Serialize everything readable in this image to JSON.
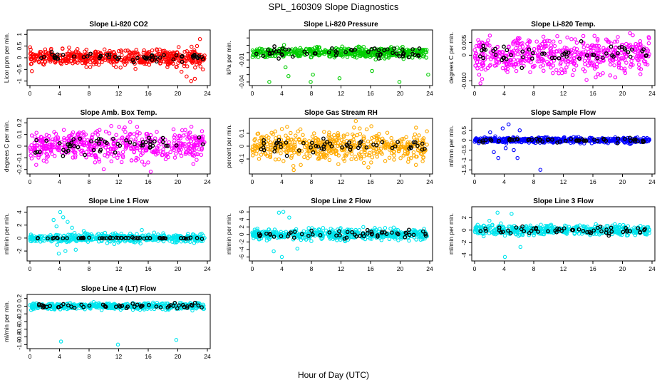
{
  "page": {
    "title": "SPL_160309  Slope Diagnostics",
    "xlabel": "Hour of Day (UTC)"
  },
  "chart_data": [
    {
      "type": "scatter",
      "title": "Slope Li-820 CO2",
      "ylabel": "Licor ppm per min.",
      "color": "#ff0000",
      "xlim": [
        0,
        24
      ],
      "ylim": [
        -1.1,
        1.1
      ],
      "xticks": [
        0,
        4,
        8,
        12,
        16,
        20,
        24
      ],
      "yticks": [
        -1,
        -0.5,
        0,
        0.5,
        1
      ],
      "ytick_labels": [
        "-1",
        "-0.5",
        "0",
        "0.5",
        "1"
      ],
      "dense": {
        "center": 0.0,
        "spread": 0.3
      },
      "mean_points": {
        "center": 0.02,
        "spread": 0.15
      },
      "outliers": [
        [
          20.5,
          -0.6
        ],
        [
          21.2,
          -0.8
        ],
        [
          21.8,
          -1.0
        ],
        [
          22.3,
          -0.9
        ],
        [
          23.0,
          0.8
        ],
        [
          22.6,
          0.5
        ],
        [
          19.8,
          -0.4
        ],
        [
          23.4,
          -0.5
        ]
      ]
    },
    {
      "type": "scatter",
      "title": "Slope Li-820 Pressure",
      "ylabel": "kPa per min.",
      "color": "#00cc00",
      "xlim": [
        0,
        24
      ],
      "ylim": [
        -0.042,
        0.028
      ],
      "xticks": [
        0,
        4,
        8,
        12,
        16,
        20,
        24
      ],
      "yticks": [
        -0.04,
        -0.03,
        -0.02,
        -0.01,
        0,
        0.01,
        0.02
      ],
      "ytick_labels": [
        "-0.04",
        "",
        "",
        "-0.01",
        "",
        "",
        ""
      ],
      "dense": {
        "center": 0.0,
        "spread": 0.006
      },
      "mean_points": {
        "center": 0.0,
        "spread": 0.008
      },
      "outliers": [
        [
          2.3,
          -0.04
        ],
        [
          4.5,
          -0.02
        ],
        [
          7.9,
          -0.04
        ],
        [
          11.8,
          -0.035
        ],
        [
          16.2,
          -0.025
        ],
        [
          19.9,
          -0.04
        ],
        [
          23.8,
          -0.03
        ],
        [
          8.2,
          -0.03
        ],
        [
          4.9,
          -0.032
        ]
      ]
    },
    {
      "type": "scatter",
      "title": "Slope Li-820 Temp.",
      "ylabel": "degrees C per min.",
      "color": "#ff00ff",
      "xlim": [
        0,
        24
      ],
      "ylim": [
        -0.011,
        0.009
      ],
      "xticks": [
        0,
        4,
        8,
        12,
        16,
        20,
        24
      ],
      "yticks": [
        -0.01,
        0,
        0.005
      ],
      "ytick_labels": [
        "-0.010",
        "0",
        "0.005"
      ],
      "dense": {
        "center": 0.0,
        "spread": 0.006
      },
      "mean_points": {
        "center": 0.0,
        "spread": 0.004
      },
      "outliers": []
    },
    {
      "type": "scatter",
      "title": "Slope Amb. Box Temp.",
      "ylabel": "degrees C per min.",
      "color": "#ff00ff",
      "xlim": [
        0,
        24
      ],
      "ylim": [
        -0.22,
        0.22
      ],
      "xticks": [
        0,
        4,
        8,
        12,
        16,
        20,
        24
      ],
      "yticks": [
        -0.2,
        -0.1,
        0,
        0.1,
        0.2
      ],
      "ytick_labels": [
        "-0.2",
        "-0.1",
        "0",
        "0.1",
        "0.2"
      ],
      "dense": {
        "center": 0.0,
        "spread": 0.12
      },
      "mean_points": {
        "center": 0.02,
        "spread": 0.08
      },
      "outliers": []
    },
    {
      "type": "scatter",
      "title": "Slope Gas Stream RH",
      "ylabel": "percent per min.",
      "color": "#ffaa00",
      "xlim": [
        0,
        24
      ],
      "ylim": [
        -0.2,
        0.2
      ],
      "xticks": [
        0,
        4,
        8,
        12,
        16,
        20,
        24
      ],
      "yticks": [
        -0.1,
        0,
        0.1
      ],
      "ytick_labels": [
        "-0.1",
        "0",
        "0.1"
      ],
      "dense": {
        "center": 0.0,
        "spread": 0.1
      },
      "mean_points": {
        "center": 0.0,
        "spread": 0.06
      },
      "outliers": []
    },
    {
      "type": "scatter",
      "title": "Slope Sample Flow",
      "ylabel": "ml/min per min.",
      "color": "#0000ff",
      "xlim": [
        0,
        24
      ],
      "ylim": [
        -1.6,
        1.0
      ],
      "xticks": [
        0,
        4,
        8,
        12,
        16,
        20,
        24
      ],
      "yticks": [
        -1.5,
        -1,
        -0.5,
        0,
        0.5
      ],
      "ytick_labels": [
        "-1.5",
        "-1",
        "-0.5",
        "0",
        "0.5"
      ],
      "dense": {
        "center": 0.0,
        "spread": 0.12
      },
      "mean_points": {
        "center": 0.0,
        "spread": 0.1
      },
      "outliers": [
        [
          2.1,
          0.4
        ],
        [
          2.6,
          -0.6
        ],
        [
          3.2,
          -0.9
        ],
        [
          3.8,
          0.6
        ],
        [
          4.2,
          -0.4
        ],
        [
          4.6,
          0.8
        ],
        [
          5.3,
          -0.5
        ],
        [
          6.1,
          0.5
        ],
        [
          8.9,
          -1.5
        ],
        [
          5.8,
          -0.9
        ],
        [
          2.8,
          0.2
        ]
      ]
    },
    {
      "type": "scatter",
      "title": "Slope Line 1 Flow",
      "ylabel": "ml/min per min.",
      "color": "#00e5ee",
      "xlim": [
        0,
        24
      ],
      "ylim": [
        -3.2,
        4.5
      ],
      "xticks": [
        0,
        4,
        8,
        12,
        16,
        20,
        24
      ],
      "yticks": [
        -2,
        0,
        2,
        4
      ],
      "ytick_labels": [
        "-2",
        "0",
        "2",
        "4"
      ],
      "dense": {
        "center": 0.0,
        "spread": 0.6
      },
      "mean_points": {
        "center": 0.0,
        "spread": 0.1
      },
      "outliers": [
        [
          3.2,
          2.8
        ],
        [
          3.6,
          1.8
        ],
        [
          4.1,
          4.0
        ],
        [
          4.5,
          3.2
        ],
        [
          5.1,
          2.5
        ],
        [
          5.7,
          1.6
        ],
        [
          4.8,
          -2.0
        ],
        [
          3.9,
          -2.4
        ],
        [
          6.2,
          -1.8
        ]
      ]
    },
    {
      "type": "scatter",
      "title": "Slope Line 2 Flow",
      "ylabel": "ml/min per min.",
      "color": "#00e5ee",
      "xlim": [
        0,
        24
      ],
      "ylim": [
        -6.5,
        6.8
      ],
      "xticks": [
        0,
        4,
        8,
        12,
        16,
        20,
        24
      ],
      "yticks": [
        -6,
        -4,
        -2,
        0,
        2,
        4,
        6
      ],
      "ytick_labels": [
        "-6",
        "-4",
        "-2",
        "0",
        "2",
        "4",
        "6"
      ],
      "dense": {
        "center": 0.0,
        "spread": 1.2
      },
      "mean_points": {
        "center": 0.0,
        "spread": 0.9
      },
      "outliers": [
        [
          3.6,
          5.8
        ],
        [
          4.2,
          6.0
        ],
        [
          2.9,
          -4.5
        ],
        [
          4.0,
          -6.0
        ],
        [
          5.0,
          4.5
        ],
        [
          6.1,
          -3.8
        ]
      ]
    },
    {
      "type": "scatter",
      "title": "Slope Line 3 Flow",
      "ylabel": "ml/min per min.",
      "color": "#00e5ee",
      "xlim": [
        0,
        24
      ],
      "ylim": [
        -4.6,
        3.4
      ],
      "xticks": [
        0,
        4,
        8,
        12,
        16,
        20,
        24
      ],
      "yticks": [
        -4,
        -2,
        0,
        2
      ],
      "ytick_labels": [
        "-4",
        "-2",
        "0",
        "2"
      ],
      "dense": {
        "center": 0.0,
        "spread": 0.7
      },
      "mean_points": {
        "center": 0.0,
        "spread": 0.6
      },
      "outliers": [
        [
          3.1,
          2.8
        ],
        [
          5.0,
          2.6
        ],
        [
          6.2,
          -2.7
        ],
        [
          4.1,
          -4.3
        ],
        [
          2.0,
          1.5
        ]
      ]
    },
    {
      "type": "scatter",
      "title": "Slope Line 4 (LT) Flow",
      "ylabel": "ml/min per min.",
      "color": "#00e5ee",
      "xlim": [
        0,
        24
      ],
      "ylim": [
        -1.05,
        0.25
      ],
      "xticks": [
        0,
        4,
        8,
        12,
        16,
        20,
        24
      ],
      "yticks": [
        -1,
        -0.8,
        -0.6,
        -0.4,
        -0.2,
        0,
        0.2
      ],
      "ytick_labels": [
        "-1.0",
        "-0.8",
        "-0.6",
        "-0.4",
        "-0.2",
        "0",
        "0.2"
      ],
      "dense": {
        "center": 0.0,
        "spread": 0.07
      },
      "mean_points": {
        "center": 0.0,
        "spread": 0.07
      },
      "outliers": [
        [
          4.2,
          -0.92
        ],
        [
          11.9,
          -1.0
        ],
        [
          19.8,
          -0.88
        ]
      ]
    }
  ]
}
